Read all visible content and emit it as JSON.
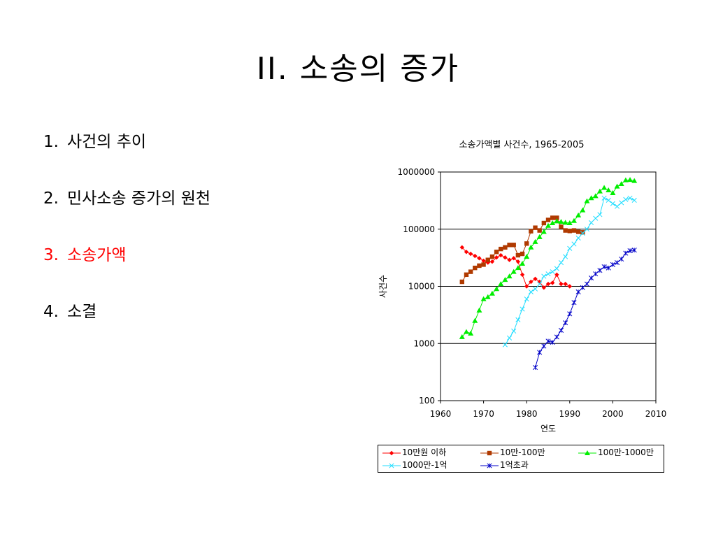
{
  "slide": {
    "title": "II. 소송의 증가",
    "outline": [
      {
        "num": "1.",
        "label": "사건의 추이",
        "active": false
      },
      {
        "num": "2.",
        "label": "민사소송 증가의 원천",
        "active": false
      },
      {
        "num": "3.",
        "label": "소송가액",
        "active": true
      },
      {
        "num": "4.",
        "label": "소결",
        "active": false
      }
    ]
  },
  "colors": {
    "active_item": "#ff0000",
    "series_10만원이하": "#ff0000",
    "series_10만-100만": "#b03a00",
    "series_100만-1000만": "#00ee00",
    "series_1000만-1억": "#22ddff",
    "series_1억초과": "#0000c8"
  },
  "chart_data": {
    "type": "line",
    "title": "소송가액별 사건수, 1965-2005",
    "xlabel": "연도",
    "ylabel": "사건수",
    "xlim": [
      1960,
      2010
    ],
    "ylim": [
      100,
      1000000
    ],
    "yscale": "log",
    "x_ticks": [
      "1960",
      "1970",
      "1980",
      "1990",
      "2000",
      "2010"
    ],
    "y_ticks": [
      "100",
      "1000",
      "10000",
      "100000",
      "1000000"
    ],
    "grid": "horizontal major lines",
    "legend_position": "bottom",
    "series": [
      {
        "name": "10만원 이하",
        "color": "#ff0000",
        "marker": "diamond",
        "x": [
          1965,
          1966,
          1967,
          1968,
          1969,
          1970,
          1971,
          1972,
          1973,
          1974,
          1975,
          1976,
          1977,
          1978,
          1979,
          1980,
          1981,
          1982,
          1983,
          1984,
          1985,
          1986,
          1987,
          1988,
          1989,
          1990
        ],
        "y": [
          48000,
          40000,
          37000,
          34000,
          31000,
          28000,
          26000,
          27000,
          32000,
          35000,
          32000,
          29000,
          31000,
          27000,
          16000,
          10000,
          12000,
          13500,
          12000,
          9500,
          11000,
          11500,
          16000,
          11000,
          11000,
          10000
        ]
      },
      {
        "name": "10만-100만",
        "color": "#b03a00",
        "marker": "square",
        "x": [
          1965,
          1966,
          1967,
          1968,
          1969,
          1970,
          1971,
          1972,
          1973,
          1974,
          1975,
          1976,
          1977,
          1978,
          1979,
          1980,
          1981,
          1982,
          1983,
          1984,
          1985,
          1986,
          1987,
          1988,
          1989,
          1990,
          1991,
          1992,
          1993
        ],
        "y": [
          12000,
          16000,
          18000,
          21000,
          23000,
          24000,
          29000,
          33000,
          40000,
          45000,
          48000,
          53000,
          53000,
          35000,
          37000,
          56000,
          92000,
          106000,
          95000,
          128000,
          145000,
          158000,
          158000,
          110000,
          95000,
          93000,
          95000,
          90000,
          88000
        ]
      },
      {
        "name": "100만-1000만",
        "color": "#00ee00",
        "marker": "triangle",
        "x": [
          1965,
          1966,
          1967,
          1968,
          1969,
          1970,
          1971,
          1972,
          1973,
          1974,
          1975,
          1976,
          1977,
          1978,
          1979,
          1980,
          1981,
          1982,
          1983,
          1984,
          1985,
          1986,
          1987,
          1988,
          1989,
          1990,
          1991,
          1992,
          1993,
          1994,
          1995,
          1996,
          1997,
          1998,
          1999,
          2000,
          2001,
          2002,
          2003,
          2004,
          2005
        ],
        "y": [
          1300,
          1600,
          1500,
          2500,
          3800,
          6000,
          6500,
          7500,
          9000,
          11000,
          13000,
          15000,
          18000,
          21000,
          25000,
          33000,
          48000,
          60000,
          73000,
          90000,
          115000,
          128000,
          138000,
          135000,
          130000,
          128000,
          140000,
          175000,
          215000,
          310000,
          350000,
          380000,
          460000,
          530000,
          480000,
          430000,
          560000,
          620000,
          720000,
          730000,
          700000
        ]
      },
      {
        "name": "1000만-1억",
        "color": "#22ddff",
        "marker": "x",
        "x": [
          1975,
          1976,
          1977,
          1978,
          1979,
          1980,
          1981,
          1982,
          1983,
          1984,
          1985,
          1986,
          1987,
          1988,
          1989,
          1990,
          1991,
          1992,
          1993,
          1994,
          1995,
          1996,
          1997,
          1998,
          1999,
          2000,
          2001,
          2002,
          2003,
          2004,
          2005
        ],
        "y": [
          950,
          1250,
          1650,
          2600,
          4000,
          6000,
          8000,
          9000,
          11000,
          15000,
          16500,
          18000,
          20500,
          26000,
          33000,
          46000,
          55000,
          70000,
          85000,
          100000,
          130000,
          155000,
          180000,
          350000,
          320000,
          280000,
          250000,
          290000,
          330000,
          350000,
          320000
        ]
      },
      {
        "name": "1억초과",
        "color": "#0000c8",
        "marker": "star",
        "x": [
          1982,
          1983,
          1984,
          1985,
          1986,
          1987,
          1988,
          1989,
          1990,
          1991,
          1992,
          1993,
          1994,
          1995,
          1996,
          1997,
          1998,
          1999,
          2000,
          2001,
          2002,
          2003,
          2004,
          2005
        ],
        "y": [
          380,
          700,
          900,
          1100,
          1050,
          1300,
          1700,
          2300,
          3300,
          5200,
          8000,
          9500,
          11000,
          14000,
          16500,
          19000,
          22000,
          21000,
          24000,
          26000,
          30000,
          38000,
          42000,
          43000
        ]
      }
    ]
  }
}
